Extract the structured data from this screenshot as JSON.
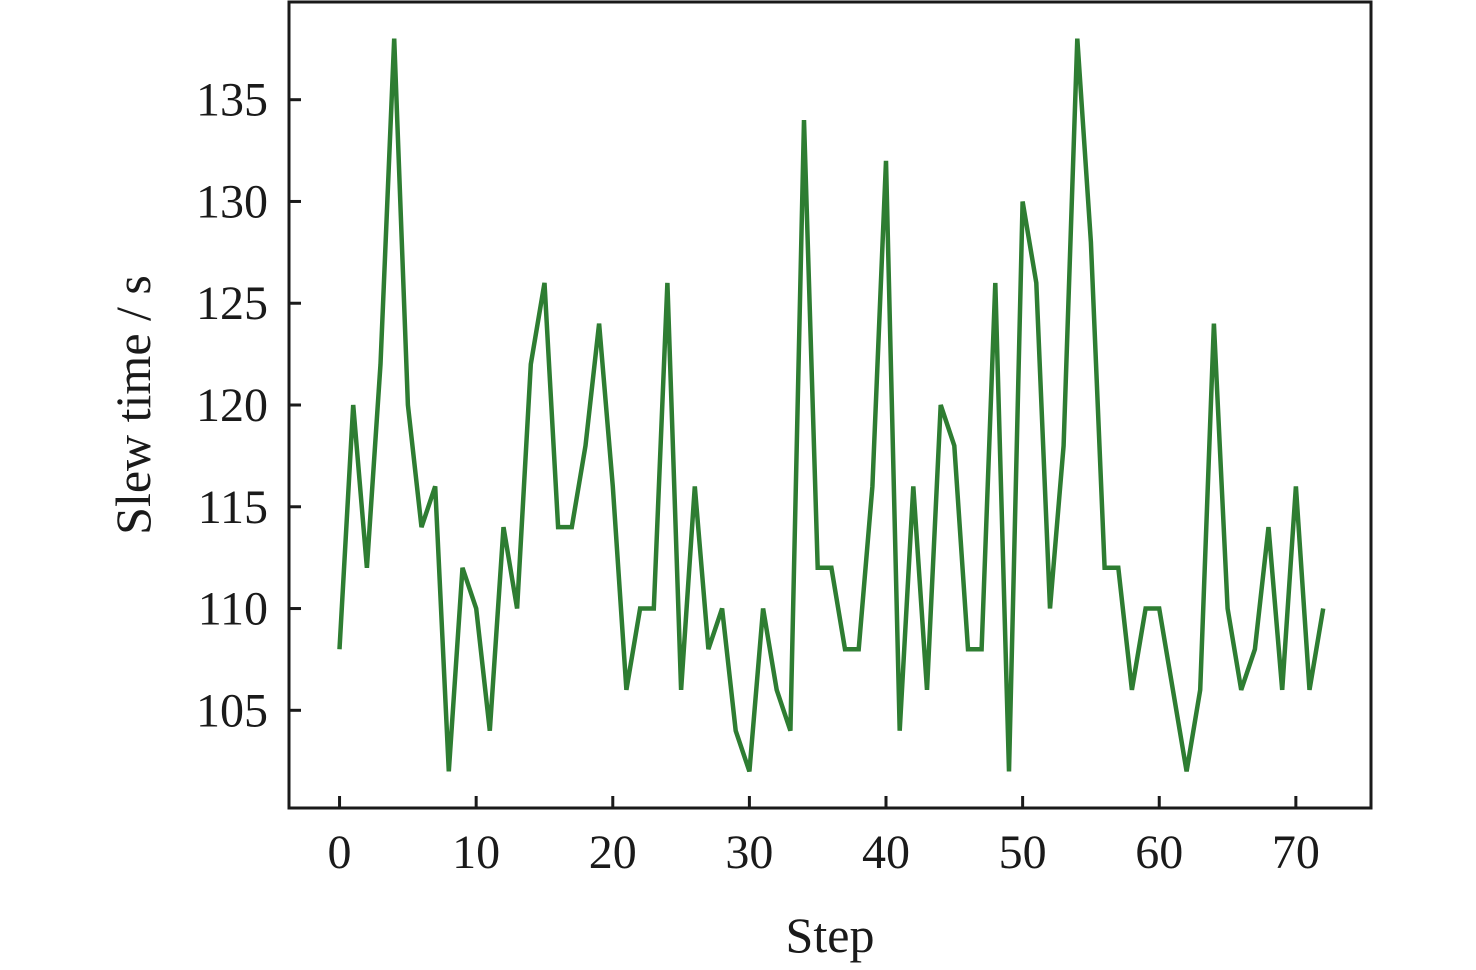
{
  "chart_data": {
    "type": "line",
    "title": "",
    "xlabel": "Step",
    "ylabel": "Slew time / s",
    "xlim": [
      -3.7,
      75.5
    ],
    "ylim": [
      100.2,
      139.8
    ],
    "xticks": [
      0,
      10,
      20,
      30,
      40,
      50,
      60,
      70
    ],
    "yticks": [
      105,
      110,
      115,
      120,
      125,
      130,
      135
    ],
    "grid": false,
    "legend": "none",
    "series": [
      {
        "color": "#2e7d32",
        "x": [
          0,
          1,
          2,
          3,
          4,
          5,
          6,
          7,
          8,
          9,
          10,
          11,
          12,
          13,
          14,
          15,
          16,
          17,
          18,
          19,
          20,
          21,
          22,
          23,
          24,
          25,
          26,
          27,
          28,
          29,
          30,
          31,
          32,
          33,
          34,
          35,
          36,
          37,
          38,
          39,
          40,
          41,
          42,
          43,
          44,
          45,
          46,
          47,
          48,
          49,
          50,
          51,
          52,
          53,
          54,
          55,
          56,
          57,
          58,
          59,
          60,
          61,
          62,
          63,
          64,
          65,
          66,
          67,
          68,
          69,
          70,
          71,
          72
        ],
        "values": [
          108,
          120,
          112,
          122,
          138,
          120,
          114,
          116,
          102,
          112,
          110,
          104,
          114,
          110,
          122,
          126,
          114,
          114,
          118,
          124,
          116,
          106,
          110,
          110,
          126,
          106,
          116,
          108,
          110,
          104,
          102,
          110,
          106,
          104,
          134,
          112,
          112,
          108,
          108,
          116,
          132,
          104,
          116,
          106,
          120,
          118,
          108,
          108,
          126,
          102,
          130,
          126,
          110,
          118,
          138,
          128,
          112,
          112,
          106,
          110,
          110,
          106,
          102,
          106,
          124,
          110,
          106,
          108,
          114,
          106,
          116,
          106,
          110
        ]
      }
    ]
  }
}
